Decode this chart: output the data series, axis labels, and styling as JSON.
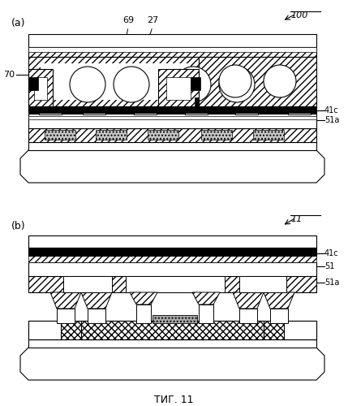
{
  "fig_width": 4.29,
  "fig_height": 5.0,
  "dpi": 100,
  "bg_color": "#ffffff",
  "label_a": "(a)",
  "label_b": "(b)",
  "ref_100": "100",
  "ref_11": "11",
  "ref_69": "69",
  "ref_27": "27",
  "ref_70": "70",
  "ref_41c_a": "41c",
  "ref_51a_a": "51a",
  "ref_41c_b": "41c",
  "ref_51_b": "51",
  "ref_51a_b": "51a",
  "caption": "ΤИГ. 11"
}
